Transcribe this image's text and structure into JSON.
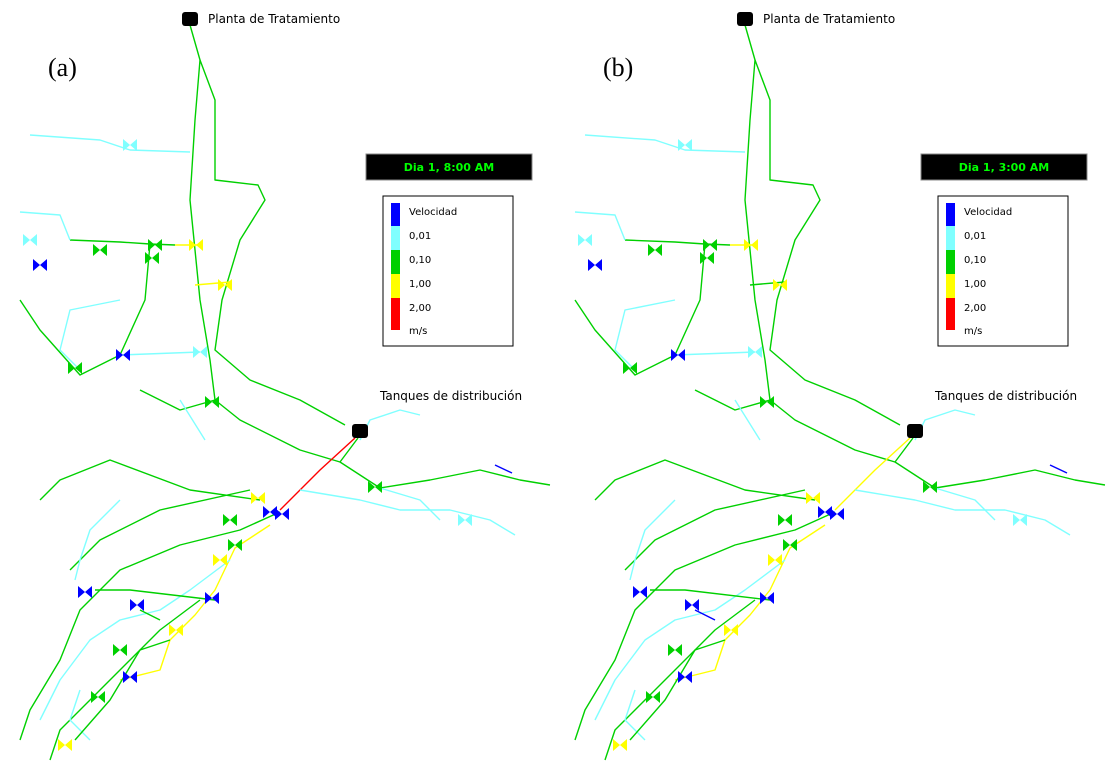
{
  "panels": [
    {
      "label": "(a)",
      "time": "Dia 1, 8:00 AM",
      "source": "Planta de Tratamiento",
      "tanks": "Tanques de distribución",
      "legend": {
        "title": "Velocidad",
        "thresholds": [
          "0,01",
          "0,10",
          "1,00",
          "2,00"
        ],
        "unit": "m/s",
        "colors": [
          "#0000ff",
          "#80ffff",
          "#00d000",
          "#ffff00",
          "#ff0000"
        ]
      }
    },
    {
      "label": "(b)",
      "time": "Dia 1, 3:00 AM",
      "source": "Planta de Tratamiento",
      "tanks": "Tanques de distribución",
      "legend": {
        "title": "Velocidad",
        "thresholds": [
          "0,01",
          "0,10",
          "1,00",
          "2,00"
        ],
        "unit": "m/s",
        "colors": [
          "#0000ff",
          "#80ffff",
          "#00d000",
          "#ffff00",
          "#ff0000"
        ]
      }
    }
  ]
}
